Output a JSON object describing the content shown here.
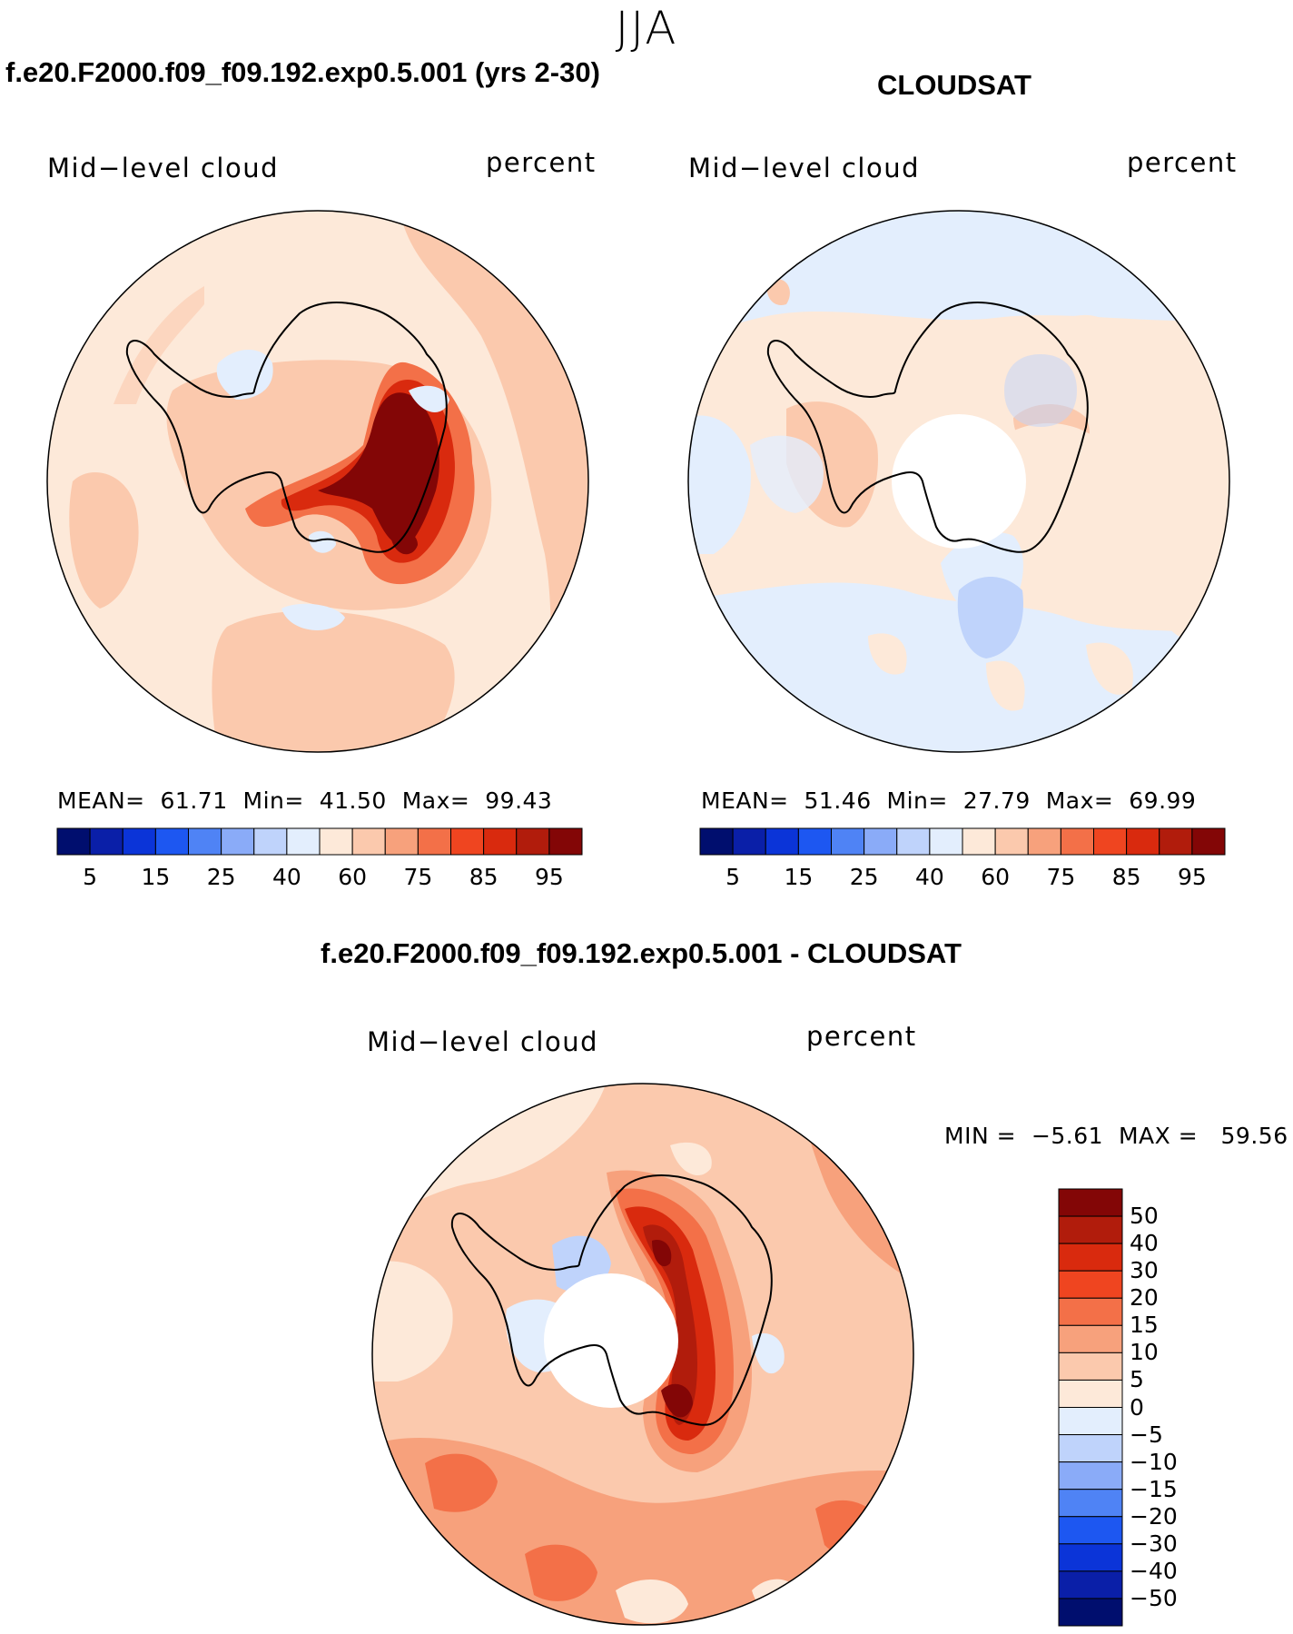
{
  "season_title": "JJA",
  "panels": {
    "model": {
      "title": "f.e20.F2000.f09_f09.192.exp0.5.001 (yrs 2-30)",
      "left_label": "Mid−level cloud",
      "right_label": "percent",
      "stats": {
        "mean_label": "MEAN=",
        "mean": "61.71",
        "min_label": "Min=",
        "min": "41.50",
        "max_label": "Max=",
        "max": "99.43"
      }
    },
    "obs": {
      "title": "CLOUDSAT",
      "left_label": "Mid−level cloud",
      "right_label": "percent",
      "stats": {
        "mean_label": "MEAN=",
        "mean": "51.46",
        "min_label": "Min=",
        "min": "27.79",
        "max_label": "Max=",
        "max": "69.99"
      }
    },
    "diff": {
      "title": "f.e20.F2000.f09_f09.192.exp0.5.001 - CLOUDSAT",
      "left_label": "Mid−level cloud",
      "right_label": "percent",
      "minmax": {
        "min_label": "MIN =",
        "min": "−5.61",
        "max_label": "MAX =",
        "max": "59.56"
      }
    }
  },
  "abs_colorbar": {
    "colors": [
      "#000e6e",
      "#0a1fa8",
      "#0b34d8",
      "#1d57f1",
      "#4f83f5",
      "#8aabf8",
      "#bfd3fb",
      "#e3eefd",
      "#fde9d9",
      "#fbc9ad",
      "#f7a17c",
      "#f37048",
      "#ef4520",
      "#d92a0e",
      "#b11c0c",
      "#830606"
    ],
    "tick_labels": [
      "5",
      "15",
      "25",
      "40",
      "60",
      "75",
      "85",
      "95"
    ]
  },
  "diff_colorbar": {
    "colors": [
      "#830606",
      "#b11c0c",
      "#d92a0e",
      "#ef4520",
      "#f37048",
      "#f7a17c",
      "#fbc9ad",
      "#fde9d9",
      "#e3eefd",
      "#bfd3fb",
      "#8aabf8",
      "#4f83f5",
      "#1d57f1",
      "#0b34d8",
      "#0a1fa8",
      "#000e6e"
    ],
    "tick_labels": [
      "50",
      "40",
      "30",
      "20",
      "15",
      "10",
      "5",
      "0",
      "−5",
      "−10",
      "−15",
      "−20",
      "−30",
      "−40",
      "−50"
    ]
  },
  "map_colors": {
    "ocean_light": "#fde9d9",
    "mid": "#fbc9ad",
    "mid2": "#f7a17c",
    "warm": "#f37048",
    "hot": "#ef4520",
    "hotter": "#d92a0e",
    "hottest": "#b11c0c",
    "max": "#830606",
    "cool": "#e3eefd",
    "cooler": "#bfd3fb",
    "coolest": "#8aabf8"
  }
}
